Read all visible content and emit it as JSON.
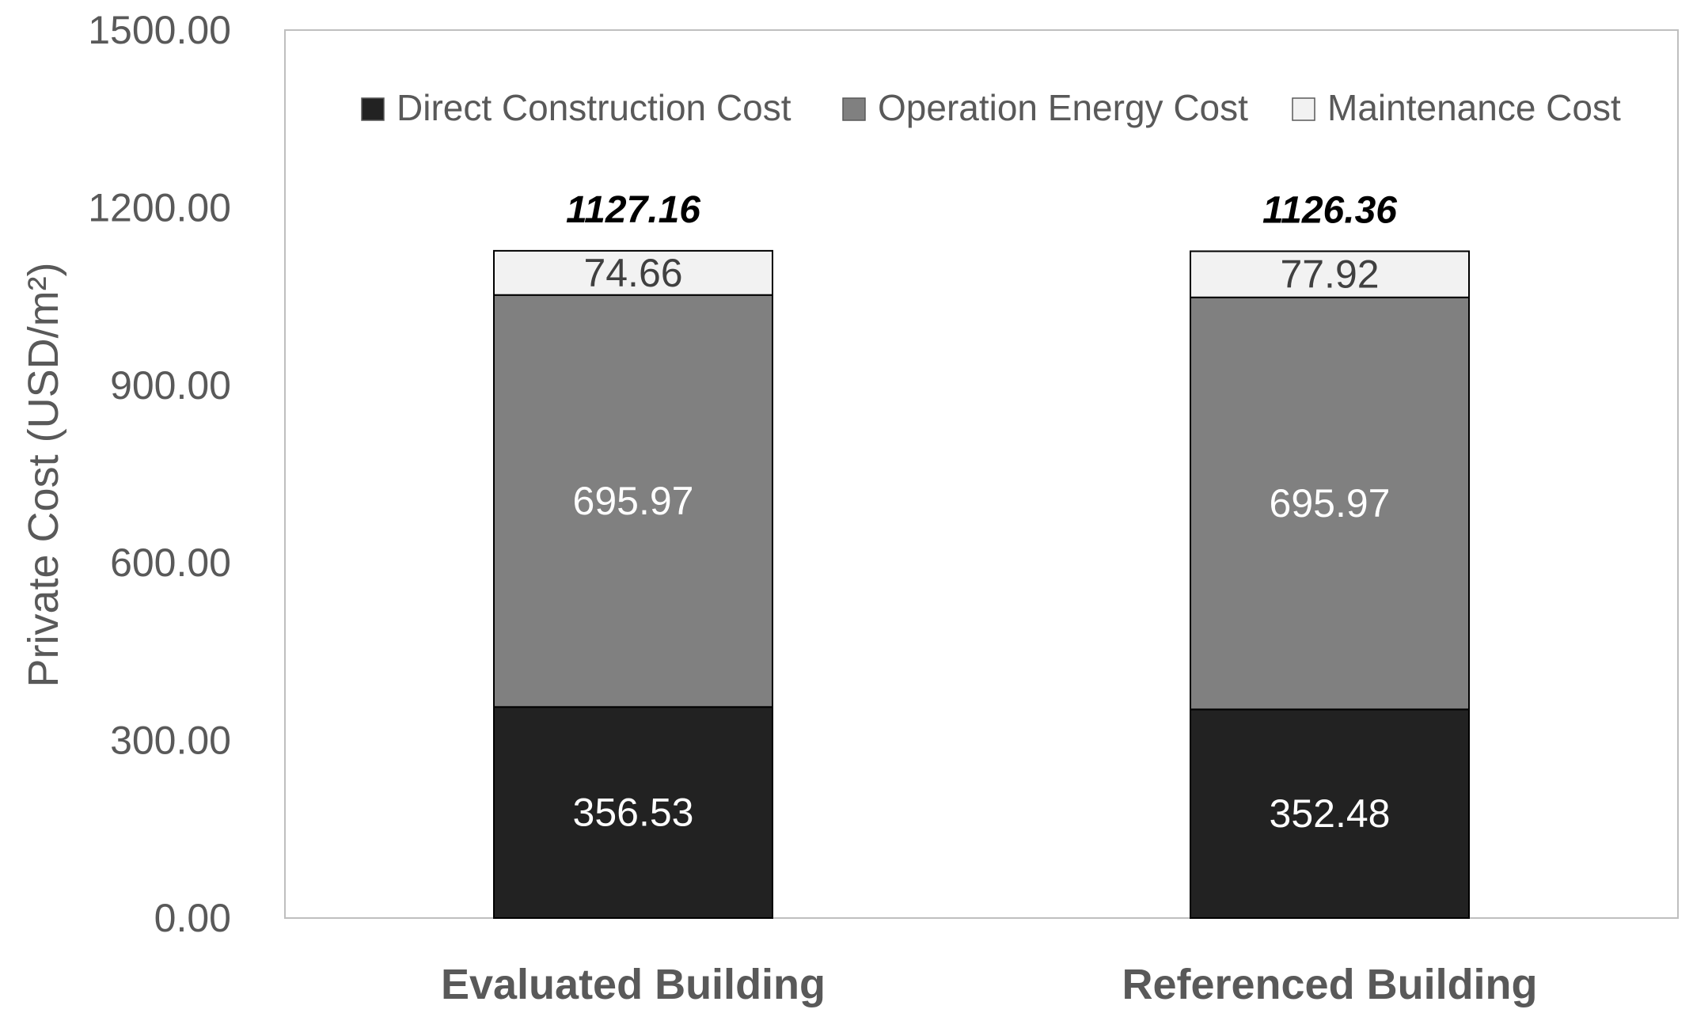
{
  "chart_data": {
    "type": "bar",
    "stacked": true,
    "categories": [
      "Evaluated Building",
      "Referenced Building"
    ],
    "series": [
      {
        "name": "Direct Construction Cost",
        "values": [
          356.53,
          352.48
        ],
        "color": "#222222"
      },
      {
        "name": "Operation Energy Cost",
        "values": [
          695.97,
          695.97
        ],
        "color": "#808080"
      },
      {
        "name": "Maintenance Cost",
        "values": [
          74.66,
          77.92
        ],
        "color": "#f2f2f2"
      }
    ],
    "totals": [
      "1127.16",
      "1126.36"
    ],
    "segment_labels": [
      [
        "356.53",
        "352.48"
      ],
      [
        "695.97",
        "695.97"
      ],
      [
        "74.66",
        "77.92"
      ]
    ],
    "ylabel": "Private Cost (USD/m²)",
    "ylim": [
      0,
      1500
    ],
    "yticks": [
      "0.00",
      "300.00",
      "600.00",
      "900.00",
      "1200.00",
      "1500.00"
    ],
    "ytick_values": [
      0,
      300,
      600,
      900,
      1200,
      1500
    ],
    "grid": false,
    "legend_position": "top"
  }
}
